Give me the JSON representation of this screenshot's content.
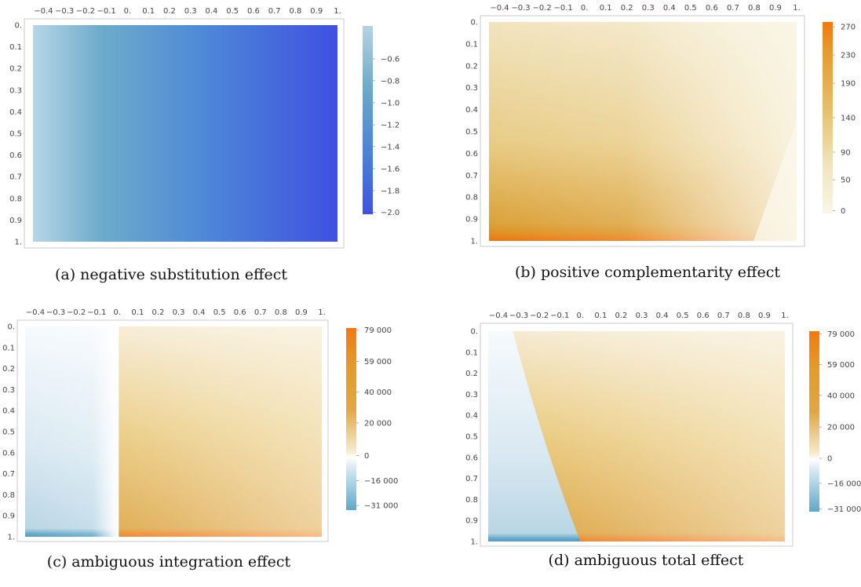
{
  "panels": [
    {
      "caption": "(a)  negative substitution effect",
      "xticks": [
        "−0.4",
        "−0.3",
        "−0.2",
        "−0.1",
        "0.",
        "0.1",
        "0.2",
        "0.3",
        "0.4",
        "0.5",
        "0.6",
        "0.7",
        "0.8",
        "0.9",
        "1."
      ],
      "yticks": [
        "0.",
        "0.1",
        "0.2",
        "0.3",
        "0.4",
        "0.5",
        "0.6",
        "0.7",
        "0.8",
        "0.9",
        "1."
      ],
      "colorbar": {
        "labels": [
          "−0.6",
          "−0.8",
          "−1.0",
          "−1.2",
          "−1.4",
          "−1.6",
          "−1.8",
          "−2.0"
        ]
      }
    },
    {
      "caption": "(b)  positive complementarity effect",
      "xticks": [
        "−0.4",
        "−0.3",
        "−0.2",
        "−0.1",
        "0.",
        "0.1",
        "0.2",
        "0.3",
        "0.4",
        "0.5",
        "0.6",
        "0.7",
        "0.8",
        "0.9",
        "1."
      ],
      "yticks": [
        "0.",
        "0.1",
        "0.2",
        "0.3",
        "0.4",
        "0.5",
        "0.6",
        "0.7",
        "0.8",
        "0.9",
        "1."
      ],
      "colorbar": {
        "labels": [
          "270",
          "230",
          "190",
          "140",
          "90",
          "50",
          "0"
        ]
      }
    },
    {
      "caption": "(c)  ambiguous integration effect",
      "xticks": [
        "−0.4",
        "−0.3",
        "−0.2",
        "−0.1",
        "0.",
        "0.1",
        "0.2",
        "0.3",
        "0.4",
        "0.5",
        "0.6",
        "0.7",
        "0.8",
        "0.9",
        "1."
      ],
      "yticks": [
        "0.",
        "0.1",
        "0.2",
        "0.3",
        "0.4",
        "0.5",
        "0.6",
        "0.7",
        "0.8",
        "0.9",
        "1."
      ],
      "colorbar": {
        "labels": [
          "79 000",
          "59 000",
          "40 000",
          "20 000",
          "0",
          "−16 000",
          "−31 000"
        ]
      }
    },
    {
      "caption": "(d)  ambiguous total effect",
      "xticks": [
        "−0.4",
        "−0.3",
        "−0.2",
        "−0.1",
        "0.",
        "0.1",
        "0.2",
        "0.3",
        "0.4",
        "0.5",
        "0.6",
        "0.7",
        "0.8",
        "0.9",
        "1."
      ],
      "yticks": [
        "0.",
        "0.1",
        "0.2",
        "0.3",
        "0.4",
        "0.5",
        "0.6",
        "0.7",
        "0.8",
        "0.9",
        "1."
      ],
      "colorbar": {
        "labels": [
          "79 000",
          "59 000",
          "40 000",
          "20 000",
          "0",
          "−16 000",
          "−31 000"
        ]
      }
    }
  ],
  "chart_data": [
    {
      "type": "heatmap",
      "title": "(a)  negative substitution effect",
      "xlim": [
        -0.45,
        1.0
      ],
      "ylim": [
        0.0,
        1.0
      ],
      "y_axis_inverted": true,
      "colorscale": [
        "#b4d3e3",
        "#6aa7c9",
        "#4a80d4",
        "#3f52e0"
      ],
      "color_range": [
        -2.0,
        -0.5
      ],
      "colorbar_ticks": [
        -0.6,
        -0.8,
        -1.0,
        -1.2,
        -1.4,
        -1.6,
        -1.8,
        -2.0
      ],
      "description": "Value depends mainly on x: about -0.5 at x=-0.45 decreasing to about -2.0 at x=1."
    },
    {
      "type": "heatmap",
      "title": "(b)  positive complementarity effect",
      "xlim": [
        -0.45,
        1.0
      ],
      "ylim": [
        0.0,
        1.0
      ],
      "y_axis_inverted": true,
      "colorscale": [
        "#f9f6e8",
        "#f1e4bf",
        "#e4bf6a",
        "#dda63a",
        "#f07a10"
      ],
      "color_range": [
        0,
        270
      ],
      "colorbar_ticks": [
        270,
        230,
        190,
        140,
        90,
        50,
        0
      ],
      "description": "Low near the top; increases toward y=1, reaching about 270 along the bottom edge."
    },
    {
      "type": "heatmap",
      "title": "(c)  ambiguous integration effect",
      "xlim": [
        -0.45,
        1.0
      ],
      "ylim": [
        0.0,
        1.0
      ],
      "y_axis_inverted": true,
      "colorscale": [
        "#5ea8c8",
        "#dcebf3",
        "#ffffff",
        "#f5ecd0",
        "#dfa845",
        "#f07a10"
      ],
      "color_range": [
        -31000,
        79000
      ],
      "colorbar_ticks": [
        79000,
        59000,
        40000,
        20000,
        0,
        -16000,
        -31000
      ],
      "description": "Negative (blue) for x<0, sign switch at x=0, positive (orange) for x>0 growing toward y=1."
    },
    {
      "type": "heatmap",
      "title": "(d)  ambiguous total effect",
      "xlim": [
        -0.45,
        1.0
      ],
      "ylim": [
        0.0,
        1.0
      ],
      "y_axis_inverted": true,
      "colorscale": [
        "#5ea8c8",
        "#dcebf3",
        "#ffffff",
        "#f5ecd0",
        "#dfa845",
        "#f07a10"
      ],
      "color_range": [
        -31000,
        79000
      ],
      "colorbar_ticks": [
        79000,
        59000,
        40000,
        20000,
        0,
        -16000,
        -31000
      ],
      "description": "Negative region in the lower-left wedge bounded by a curve from (x=-0.33,y=0) to (x=0,y=1); positive elsewhere."
    }
  ]
}
